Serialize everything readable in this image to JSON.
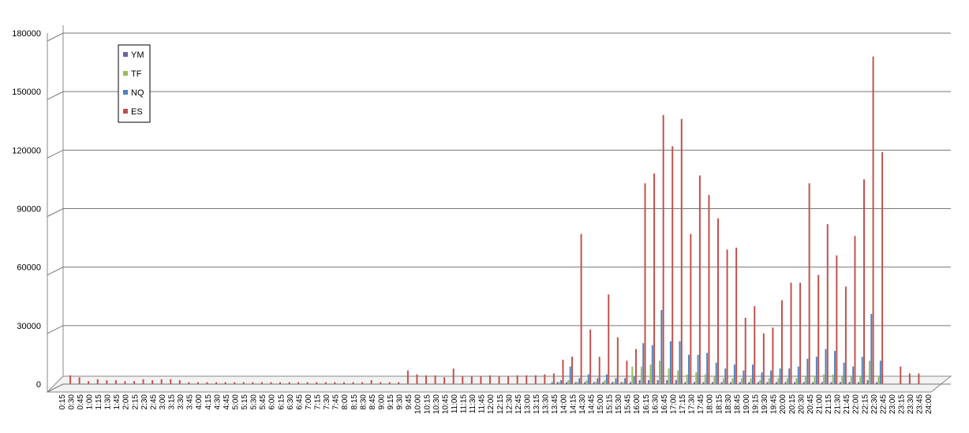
{
  "chart_data": {
    "type": "bar",
    "legend": "upper left",
    "grid": true,
    "ylim": [
      0,
      180000
    ],
    "yticks": [
      0,
      30000,
      60000,
      90000,
      120000,
      150000,
      180000
    ],
    "categories": [
      "0:15",
      "0:30",
      "0:45",
      "1:00",
      "1:15",
      "1:30",
      "1:45",
      "2:00",
      "2:15",
      "2:30",
      "2:45",
      "3:00",
      "3:15",
      "3:30",
      "3:45",
      "4:00",
      "4:15",
      "4:30",
      "4:45",
      "5:00",
      "5:15",
      "5:30",
      "5:45",
      "6:00",
      "6:15",
      "6:30",
      "6:45",
      "7:00",
      "7:15",
      "7:30",
      "7:45",
      "8:00",
      "8:15",
      "8:30",
      "8:45",
      "9:00",
      "9:15",
      "9:30",
      "9:45",
      "10:00",
      "10:15",
      "10:30",
      "10:45",
      "11:00",
      "11:15",
      "11:30",
      "11:45",
      "12:00",
      "12:15",
      "12:30",
      "12:45",
      "13:00",
      "13:15",
      "13:30",
      "13:45",
      "14:00",
      "14:15",
      "14:30",
      "14:45",
      "15:00",
      "15:15",
      "15:30",
      "15:45",
      "16:00",
      "16:15",
      "16:30",
      "16:45",
      "17:00",
      "17:15",
      "17:30",
      "17:45",
      "18:00",
      "18:15",
      "18:30",
      "18:45",
      "19:00",
      "19:15",
      "19:30",
      "19:45",
      "20:00",
      "20:15",
      "20:30",
      "20:45",
      "21:00",
      "21:15",
      "21:30",
      "21:45",
      "22:00",
      "22:15",
      "22:30",
      "22:45",
      "23:00",
      "23:15",
      "23:30",
      "23:45",
      "24:00"
    ],
    "series": [
      {
        "name": "YM",
        "color": "#7060a8",
        "values": [
          0,
          0,
          0,
          0,
          0,
          0,
          0,
          0,
          0,
          0,
          0,
          0,
          0,
          0,
          0,
          0,
          0,
          0,
          0,
          0,
          0,
          0,
          0,
          0,
          0,
          0,
          0,
          0,
          0,
          0,
          0,
          0,
          0,
          0,
          0,
          0,
          0,
          0,
          0,
          0,
          0,
          0,
          0,
          0,
          0,
          0,
          0,
          0,
          0,
          0,
          0,
          0,
          0,
          0,
          1000,
          1000,
          1000,
          1000,
          1000,
          1000,
          1000,
          1000,
          1000,
          2000,
          2000,
          2000,
          2000,
          2000,
          1000,
          1000,
          1000,
          1000,
          1000,
          1000,
          1000,
          1000,
          1000,
          1000,
          1000,
          1000,
          1000,
          1000,
          1000,
          1000,
          1000,
          1000,
          1000,
          1000,
          2000,
          1000,
          0,
          0,
          0,
          0,
          0,
          0
        ]
      },
      {
        "name": "TF",
        "color": "#9bbb59",
        "values": [
          0,
          0,
          0,
          0,
          0,
          0,
          0,
          0,
          0,
          0,
          0,
          0,
          0,
          0,
          0,
          0,
          0,
          0,
          0,
          0,
          0,
          0,
          0,
          0,
          0,
          0,
          0,
          0,
          0,
          0,
          0,
          0,
          0,
          0,
          0,
          0,
          0,
          0,
          0,
          0,
          0,
          0,
          0,
          0,
          0,
          0,
          0,
          0,
          0,
          0,
          0,
          0,
          0,
          0,
          1000,
          2000,
          1000,
          2000,
          1000,
          2000,
          1000,
          1000,
          9000,
          9000,
          10000,
          12000,
          8000,
          7000,
          5000,
          6000,
          5000,
          4000,
          3000,
          3000,
          3000,
          3000,
          2000,
          3000,
          3000,
          3000,
          3000,
          4000,
          4000,
          5000,
          5000,
          4000,
          4000,
          4000,
          12000,
          4000,
          0,
          0,
          0,
          0,
          0,
          0
        ]
      },
      {
        "name": "NQ",
        "color": "#4f81bd",
        "values": [
          0,
          0,
          0,
          0,
          0,
          0,
          0,
          0,
          0,
          0,
          0,
          0,
          0,
          0,
          0,
          0,
          0,
          0,
          0,
          0,
          0,
          0,
          0,
          0,
          0,
          0,
          0,
          0,
          0,
          0,
          0,
          0,
          0,
          0,
          0,
          0,
          0,
          0,
          0,
          0,
          0,
          0,
          0,
          0,
          0,
          0,
          0,
          0,
          0,
          0,
          0,
          0,
          0,
          1000,
          2000,
          9000,
          3000,
          5000,
          3000,
          5000,
          3000,
          3000,
          4000,
          21000,
          20000,
          38000,
          22000,
          22000,
          15000,
          15000,
          16000,
          11000,
          8000,
          10000,
          7000,
          10000,
          6000,
          7000,
          8000,
          8000,
          9000,
          13000,
          14000,
          18000,
          17000,
          11000,
          9000,
          14000,
          36000,
          12000,
          0,
          0,
          0,
          0,
          0,
          0
        ]
      },
      {
        "name": "ES",
        "color": "#c0504d",
        "values": [
          4500,
          3500,
          1500,
          2500,
          2000,
          2000,
          1500,
          1500,
          2500,
          2000,
          2500,
          2500,
          2000,
          1000,
          1000,
          1000,
          1000,
          1000,
          1000,
          1000,
          1000,
          1000,
          1000,
          1000,
          1000,
          1000,
          1000,
          1000,
          1000,
          1000,
          1000,
          1000,
          1000,
          2000,
          1000,
          1000,
          1000,
          7000,
          5000,
          4500,
          4500,
          3500,
          8000,
          4000,
          4000,
          4000,
          4500,
          4000,
          4000,
          4500,
          4500,
          4500,
          5000,
          5500,
          12500,
          14000,
          77000,
          28000,
          14000,
          46000,
          24000,
          12000,
          18000,
          103000,
          108000,
          138000,
          122000,
          136000,
          77000,
          107000,
          97000,
          85000,
          69000,
          70000,
          34000,
          40000,
          26000,
          29000,
          43000,
          52000,
          52000,
          103000,
          56000,
          82000,
          66000,
          50000,
          76000,
          105000,
          168000,
          119000,
          0,
          9000,
          5500,
          5500,
          0,
          0
        ]
      }
    ]
  }
}
